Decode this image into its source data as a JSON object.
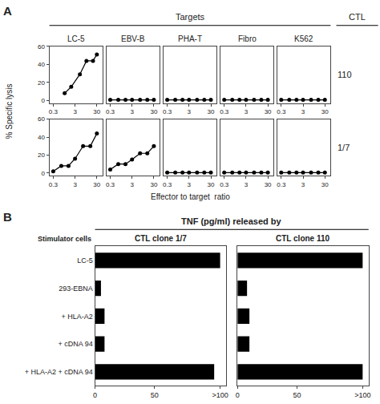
{
  "chart_data": [
    {
      "type": "line",
      "title": "LC-5",
      "ylabel": "% Specific lysis",
      "annotations": [
        "A",
        "Targets"
      ],
      "x": [
        1,
        2,
        5,
        10,
        20,
        30
      ],
      "values": [
        8,
        15,
        29,
        44,
        44,
        51
      ],
      "log": "x",
      "xlim": [
        0.2,
        55
      ],
      "xticks": [
        0.3,
        3,
        30
      ],
      "ylim": [
        -3,
        60
      ],
      "yticks": [
        0,
        20,
        40,
        60
      ],
      "grid": false,
      "color": "#000000",
      "marker": "circle",
      "line_style": "solid"
    },
    {
      "type": "line",
      "title": "EBV-B",
      "x": [
        0.3,
        0.7,
        1.5,
        3,
        7,
        15,
        30
      ],
      "values": [
        0.5,
        0.5,
        0.5,
        0.5,
        0.5,
        0.5,
        0.5
      ],
      "log": "x",
      "xlim": [
        0.2,
        55
      ],
      "xticks": [
        0.3,
        3,
        30
      ],
      "ylim": [
        -3,
        60
      ],
      "yticks": [
        0,
        20,
        40,
        60
      ],
      "grid": false,
      "tick_labels": "x",
      "color": "#000000",
      "marker": "circle",
      "line_style": "solid"
    },
    {
      "type": "line",
      "title": "PHA-T",
      "x": [
        0.3,
        0.7,
        1.5,
        3,
        7,
        15,
        30
      ],
      "values": [
        0.5,
        0.5,
        0.5,
        0.5,
        0.5,
        0.5,
        0.5
      ],
      "log": "x",
      "xlim": [
        0.2,
        55
      ],
      "xticks": [
        0.3,
        3,
        30
      ],
      "ylim": [
        -3,
        60
      ],
      "yticks": [
        0,
        20,
        40,
        60
      ],
      "grid": false,
      "tick_labels": "x",
      "color": "#000000",
      "marker": "circle",
      "line_style": "solid"
    },
    {
      "type": "line",
      "title": "Fibro",
      "x": [
        0.3,
        0.7,
        1.5,
        3,
        7,
        15,
        30
      ],
      "values": [
        0.5,
        0.5,
        0.5,
        0.5,
        0.5,
        0.5,
        0.5
      ],
      "log": "x",
      "xlim": [
        0.2,
        55
      ],
      "xticks": [
        0.3,
        3,
        30
      ],
      "ylim": [
        -3,
        60
      ],
      "yticks": [
        0,
        20,
        40,
        60
      ],
      "grid": false,
      "tick_labels": "x",
      "color": "#000000",
      "marker": "circle",
      "line_style": "solid"
    },
    {
      "type": "line",
      "title": "K562",
      "annotations": [
        "CTL",
        "110"
      ],
      "x": [
        0.3,
        0.7,
        1.5,
        3,
        7,
        15,
        30
      ],
      "values": [
        0.5,
        0.5,
        0.5,
        0.5,
        0.5,
        0.5,
        0.5
      ],
      "log": "x",
      "xlim": [
        0.2,
        55
      ],
      "xticks": [
        0.3,
        3,
        30
      ],
      "ylim": [
        -3,
        60
      ],
      "yticks": [
        0,
        20,
        40,
        60
      ],
      "grid": false,
      "tick_labels": "x",
      "color": "#000000",
      "marker": "circle",
      "line_style": "solid"
    },
    {
      "type": "line",
      "x": [
        0.3,
        0.7,
        1.5,
        3,
        7,
        15,
        30
      ],
      "values": [
        2,
        8,
        8,
        16,
        30,
        30,
        44
      ],
      "log": "x",
      "xlim": [
        0.2,
        55
      ],
      "xticks": [
        0.3,
        3,
        30
      ],
      "ylim": [
        -3,
        60
      ],
      "yticks": [
        0,
        20,
        40,
        60
      ],
      "grid": false,
      "color": "#000000",
      "marker": "circle",
      "line_style": "solid"
    },
    {
      "type": "line",
      "x": [
        0.3,
        0.7,
        1.5,
        3,
        7,
        15,
        30
      ],
      "values": [
        4,
        10,
        10,
        15,
        22,
        22,
        30
      ],
      "log": "x",
      "xlim": [
        0.2,
        55
      ],
      "xticks": [
        0.3,
        3,
        30
      ],
      "ylim": [
        -3,
        60
      ],
      "yticks": [
        0,
        20,
        40,
        60
      ],
      "grid": false,
      "tick_labels": "x",
      "color": "#000000",
      "marker": "circle",
      "line_style": "solid"
    },
    {
      "type": "line",
      "xlabel": "Effector to target  ratio",
      "x": [
        0.3,
        0.7,
        1.5,
        3,
        7,
        15,
        30
      ],
      "values": [
        0.5,
        0.5,
        0.5,
        0.5,
        0.5,
        0.5,
        0.5
      ],
      "log": "x",
      "xlim": [
        0.2,
        55
      ],
      "xticks": [
        0.3,
        3,
        30
      ],
      "ylim": [
        -3,
        60
      ],
      "yticks": [
        0,
        20,
        40,
        60
      ],
      "grid": false,
      "tick_labels": "x",
      "color": "#000000",
      "marker": "circle",
      "line_style": "solid"
    },
    {
      "type": "line",
      "x": [
        0.3,
        0.7,
        1.5,
        3,
        7,
        15,
        30
      ],
      "values": [
        0.5,
        0.5,
        0.5,
        0.5,
        0.5,
        0.5,
        0.5
      ],
      "log": "x",
      "xlim": [
        0.2,
        55
      ],
      "xticks": [
        0.3,
        3,
        30
      ],
      "ylim": [
        -3,
        60
      ],
      "yticks": [
        0,
        20,
        40,
        60
      ],
      "grid": false,
      "tick_labels": "x",
      "color": "#000000",
      "marker": "circle",
      "line_style": "solid"
    },
    {
      "type": "line",
      "annotations": [
        "1/7"
      ],
      "x": [
        0.3,
        0.7,
        1.5,
        3,
        7,
        15,
        30
      ],
      "values": [
        0.5,
        0.5,
        0.5,
        0.5,
        0.5,
        0.5,
        0.5
      ],
      "log": "x",
      "xlim": [
        0.2,
        55
      ],
      "xticks": [
        0.3,
        3,
        30
      ],
      "ylim": [
        -3,
        60
      ],
      "yticks": [
        0,
        20,
        40,
        60
      ],
      "grid": false,
      "tick_labels": "x",
      "color": "#000000",
      "marker": "circle",
      "line_style": "solid"
    },
    {
      "type": "bar",
      "title": "CTL clone 1/7",
      "annotations": [
        "B",
        "TNF (pg/ml) released by",
        "Stimulator cells"
      ],
      "orientation": "horizontal",
      "categories": [
        "LC-5",
        "293-EBNA",
        "+ HLA-A2",
        "+ cDNA 94",
        "+ HLA-A2 + cDNA 94"
      ],
      "values": [
        105,
        5,
        8,
        8,
        100
      ],
      "xlim": [
        0,
        110
      ],
      "xticks": [
        0,
        50,
        {
          "value": 105,
          "label": ">100"
        }
      ],
      "grid": false,
      "color": "#000000"
    },
    {
      "type": "bar",
      "title": "CTL clone 110",
      "orientation": "horizontal",
      "categories": [
        "LC-5",
        "293-EBNA",
        "+ HLA-A2",
        "+ cDNA 94",
        "+ HLA-A2 + cDNA 94"
      ],
      "values": [
        105,
        8,
        10,
        10,
        105
      ],
      "xlim": [
        0,
        110
      ],
      "xticks": [
        0,
        50,
        {
          "value": 105,
          "label": ">100"
        }
      ],
      "grid": false,
      "tick_labels": "x",
      "color": "#000000"
    }
  ]
}
